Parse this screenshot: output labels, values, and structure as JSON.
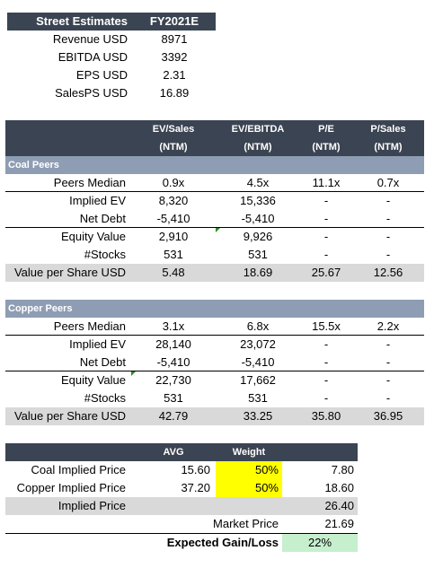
{
  "street": {
    "header": [
      "Street Estimates",
      "FY2021E"
    ],
    "rows": [
      {
        "label": "Revenue USD",
        "value": "8971"
      },
      {
        "label": "EBITDA USD",
        "value": "3392"
      },
      {
        "label": "EPS USD",
        "value": "2.31"
      },
      {
        "label": "SalesPS USD",
        "value": "16.89"
      }
    ]
  },
  "multiples_header": {
    "line1": [
      "EV/Sales",
      "EV/EBITDA",
      "P/E",
      "P/Sales"
    ],
    "line2": [
      "(NTM)",
      "(NTM)",
      "(NTM)",
      "(NTM)"
    ]
  },
  "coal": {
    "title": "Coal Peers",
    "rows": [
      {
        "label": "Peers Median",
        "v": [
          "0.9x",
          "4.5x",
          "11.1x",
          "0.7x"
        ]
      },
      {
        "label": "Implied EV",
        "v": [
          "8,320",
          "15,336",
          "-",
          "-"
        ]
      },
      {
        "label": "Net Debt",
        "v": [
          "-5,410",
          "-5,410",
          "-",
          "-"
        ]
      },
      {
        "label": "Equity Value",
        "v": [
          "2,910",
          "9,926",
          "-",
          "-"
        ]
      },
      {
        "label": "#Stocks",
        "v": [
          "531",
          "531",
          "-",
          "-"
        ]
      },
      {
        "label": "Value per Share USD",
        "v": [
          "5.48",
          "18.69",
          "25.67",
          "12.56"
        ]
      }
    ]
  },
  "copper": {
    "title": "Copper Peers",
    "rows": [
      {
        "label": "Peers Median",
        "v": [
          "3.1x",
          "6.8x",
          "15.5x",
          "2.2x"
        ]
      },
      {
        "label": "Implied EV",
        "v": [
          "28,140",
          "23,072",
          "-",
          "-"
        ]
      },
      {
        "label": "Net Debt",
        "v": [
          "-5,410",
          "-5,410",
          "-",
          "-"
        ]
      },
      {
        "label": "Equity Value",
        "v": [
          "22,730",
          "17,662",
          "-",
          "-"
        ]
      },
      {
        "label": "#Stocks",
        "v": [
          "531",
          "531",
          "-",
          "-"
        ]
      },
      {
        "label": "Value per Share USD",
        "v": [
          "42.79",
          "33.25",
          "35.80",
          "36.95"
        ]
      }
    ]
  },
  "summary": {
    "header": [
      "AVG",
      "Weight"
    ],
    "coal": {
      "label": "Coal Implied Price",
      "avg": "15.60",
      "weight": "50%",
      "value": "7.80"
    },
    "copper": {
      "label": "Copper Implied Price",
      "avg": "37.20",
      "weight": "50%",
      "value": "18.60"
    },
    "implied": {
      "label": "Implied Price",
      "value": "26.40"
    },
    "market": {
      "label": "Market Price",
      "value": "21.69"
    },
    "gain": {
      "label": "Expected Gain/Loss",
      "value": "22%"
    }
  },
  "colors": {
    "header_bg": "#3b4452",
    "section_bg": "#8e9db4",
    "shaded_bg": "#d9d9d9",
    "weight_bg": "#ffff00",
    "gain_bg": "#c6efce",
    "comment_marker": "#2e8b2e"
  }
}
